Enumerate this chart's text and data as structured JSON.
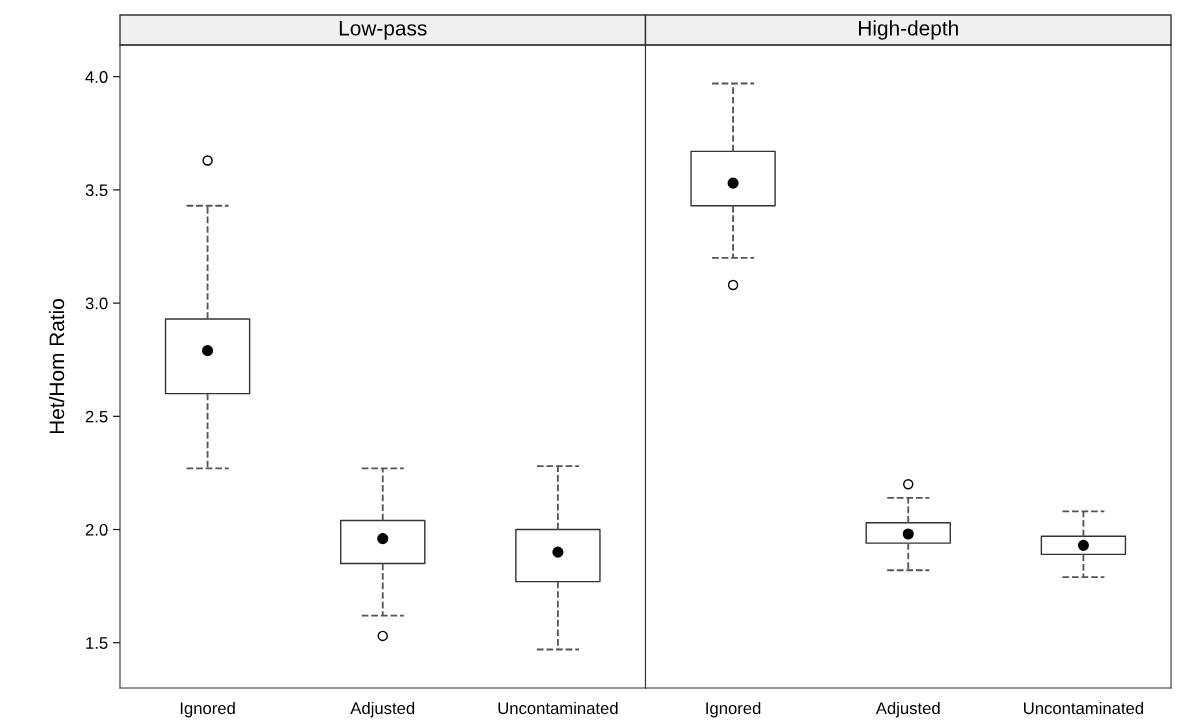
{
  "chart_data": [
    {
      "type": "box",
      "title": "Low-pass",
      "ylabel": "Het/Hom Ratio",
      "categories": [
        "Ignored",
        "Adjusted",
        "Uncontaminated"
      ],
      "ylim": [
        1.3,
        4.14
      ],
      "yticks": [
        {
          "value": 1.5,
          "label": "1.5"
        },
        {
          "value": 2.0,
          "label": "2.0"
        },
        {
          "value": 2.5,
          "label": "2.5"
        },
        {
          "value": 3.0,
          "label": "3.0"
        },
        {
          "value": 3.5,
          "label": "3.5"
        },
        {
          "value": 4.0,
          "label": "4.0"
        }
      ],
      "grid": false,
      "boxes": [
        {
          "low": 2.27,
          "q1": 2.6,
          "median": 2.79,
          "q3": 2.93,
          "high": 3.43,
          "outliers": [
            3.63
          ]
        },
        {
          "low": 1.62,
          "q1": 1.85,
          "median": 1.96,
          "q3": 2.04,
          "high": 2.27,
          "outliers": [
            1.53
          ]
        },
        {
          "low": 1.47,
          "q1": 1.77,
          "median": 1.9,
          "q3": 2.0,
          "high": 2.28
        }
      ]
    },
    {
      "type": "box",
      "title": "High-depth",
      "categories": [
        "Ignored",
        "Adjusted",
        "Uncontaminated"
      ],
      "ylim": [
        1.3,
        4.14
      ],
      "tick_labels": "x",
      "grid": false,
      "boxes": [
        {
          "low": 3.2,
          "q1": 3.43,
          "median": 3.53,
          "q3": 3.67,
          "high": 3.97,
          "outliers": [
            3.08
          ]
        },
        {
          "low": 1.82,
          "q1": 1.94,
          "median": 1.98,
          "q3": 2.03,
          "high": 2.14,
          "outliers": [
            2.2
          ]
        },
        {
          "low": 1.79,
          "q1": 1.89,
          "median": 1.93,
          "q3": 1.97,
          "high": 2.08
        }
      ]
    }
  ]
}
